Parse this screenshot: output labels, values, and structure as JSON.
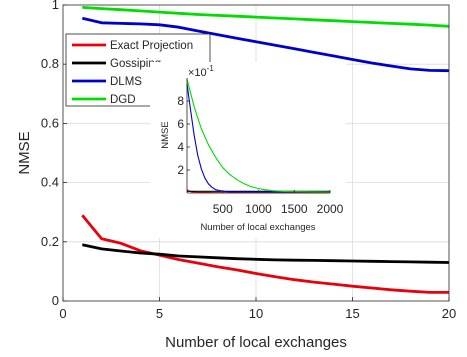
{
  "chart_data": [
    {
      "type": "line",
      "xlabel": "Number of local exchanges",
      "ylabel": "NMSE",
      "xlim": [
        0,
        20
      ],
      "ylim": [
        0,
        1
      ],
      "xticks": [
        0,
        5,
        10,
        15,
        20
      ],
      "yticks": [
        0,
        0.2,
        0.4,
        0.6,
        0.8,
        1
      ],
      "xtick_labels": [
        "0",
        "5",
        "10",
        "15",
        "20"
      ],
      "ytick_labels": [
        "0",
        "0.2",
        "0.4",
        "0.6",
        "0.8",
        "1"
      ],
      "grid": true,
      "legend": "top-left",
      "series": [
        {
          "name": "Exact Projection",
          "color": "#e8000b",
          "x": [
            1,
            2,
            3,
            4,
            5,
            6,
            7,
            8,
            9,
            10,
            11,
            12,
            13,
            14,
            15,
            16,
            17,
            18,
            19,
            20
          ],
          "y": [
            0.29,
            0.21,
            0.195,
            0.17,
            0.155,
            0.14,
            0.128,
            0.116,
            0.105,
            0.093,
            0.082,
            0.072,
            0.064,
            0.057,
            0.05,
            0.044,
            0.038,
            0.033,
            0.029,
            0.029
          ]
        },
        {
          "name": "Gossiping",
          "color": "#000000",
          "x": [
            1,
            2,
            3,
            4,
            5,
            6,
            7,
            8,
            9,
            10,
            11,
            12,
            13,
            14,
            15,
            16,
            17,
            18,
            19,
            20
          ],
          "y": [
            0.19,
            0.176,
            0.169,
            0.162,
            0.158,
            0.152,
            0.149,
            0.146,
            0.143,
            0.141,
            0.139,
            0.138,
            0.137,
            0.136,
            0.135,
            0.134,
            0.133,
            0.132,
            0.131,
            0.13
          ]
        },
        {
          "name": "DLMS",
          "color": "#0000cc",
          "x": [
            1,
            2,
            3,
            4,
            5,
            6,
            7,
            8,
            9,
            10,
            11,
            12,
            13,
            14,
            15,
            16,
            17,
            18,
            19,
            20
          ],
          "y": [
            0.955,
            0.94,
            0.938,
            0.936,
            0.933,
            0.925,
            0.912,
            0.9,
            0.888,
            0.876,
            0.864,
            0.852,
            0.84,
            0.828,
            0.816,
            0.804,
            0.794,
            0.784,
            0.779,
            0.778
          ]
        },
        {
          "name": "DGD",
          "color": "#00dd00",
          "x": [
            1,
            2,
            3,
            4,
            5,
            6,
            7,
            8,
            9,
            10,
            11,
            12,
            13,
            14,
            15,
            16,
            17,
            18,
            19,
            20
          ],
          "y": [
            0.992,
            0.988,
            0.984,
            0.98,
            0.976,
            0.972,
            0.968,
            0.965,
            0.962,
            0.959,
            0.956,
            0.953,
            0.95,
            0.947,
            0.944,
            0.941,
            0.938,
            0.935,
            0.932,
            0.928
          ]
        }
      ]
    },
    {
      "type": "line",
      "inset": true,
      "xlabel": "Number of local exchanges",
      "ylabel": "NMSE",
      "xlim": [
        0,
        2000
      ],
      "ylim": [
        0,
        1
      ],
      "xtick_labels": [
        "500",
        "1000",
        "1500",
        "2000"
      ],
      "xticks": [
        500,
        1000,
        1500,
        2000
      ],
      "yticks": [
        0.2,
        0.4,
        0.6,
        0.8
      ],
      "ytick_labels": [
        "2",
        "4",
        "6",
        "8"
      ],
      "multiplier_label": "×10",
      "multiplier_exponent": "-1",
      "grid": false,
      "series": [
        {
          "color": "#e8000b",
          "x": [
            0,
            20,
            60,
            150,
            400,
            1000,
            2000
          ],
          "y": [
            0.03,
            0.02,
            0.01,
            0.005,
            0.003,
            0.002,
            0.002
          ]
        },
        {
          "color": "#000000",
          "x": [
            0,
            500,
            1000,
            1500,
            2000
          ],
          "y": [
            0.015,
            0.015,
            0.015,
            0.015,
            0.015
          ]
        },
        {
          "color": "#0000cc",
          "x": [
            0,
            50,
            100,
            150,
            200,
            250,
            300,
            350,
            400,
            500,
            600,
            2000
          ],
          "y": [
            0.95,
            0.72,
            0.5,
            0.33,
            0.21,
            0.13,
            0.08,
            0.05,
            0.03,
            0.015,
            0.01,
            0.01
          ]
        },
        {
          "color": "#00dd00",
          "x": [
            0,
            100,
            200,
            300,
            400,
            500,
            600,
            700,
            800,
            900,
            1000,
            1100,
            1200,
            1400,
            2000
          ],
          "y": [
            0.99,
            0.75,
            0.56,
            0.42,
            0.31,
            0.22,
            0.16,
            0.115,
            0.08,
            0.055,
            0.038,
            0.028,
            0.02,
            0.012,
            0.008
          ]
        }
      ]
    }
  ]
}
